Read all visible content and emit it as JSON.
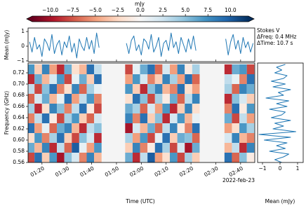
{
  "chart_data": [
    {
      "type": "heatmap",
      "clabel": "mJy",
      "colormap": "RdBu",
      "clim": [
        -12,
        12
      ],
      "cticks": [
        {
          "value": -10,
          "label": "−10.0"
        },
        {
          "value": -7.5,
          "label": "−7.5"
        },
        {
          "value": -5,
          "label": "−5.0"
        },
        {
          "value": -2.5,
          "label": "−2.5"
        },
        {
          "value": 0,
          "label": "0.0"
        },
        {
          "value": 2.5,
          "label": "2.5"
        },
        {
          "value": 5,
          "label": "5.0"
        },
        {
          "value": 7.5,
          "label": "7.5"
        },
        {
          "value": 10,
          "label": "10.0"
        }
      ],
      "xlabel": "Time (UTC)",
      "ylabel": "Frequency (GHz)",
      "date_label": "2022-feb-23",
      "annotations": [
        "Stokes V",
        "ΔFreq: 0.4 MHz",
        "ΔTime: 10.7 s"
      ],
      "xlim": [
        74.4,
        165.7
      ],
      "xticks": [
        {
          "value": 80,
          "label": "01:20"
        },
        {
          "value": 90,
          "label": "01:30"
        },
        {
          "value": 100,
          "label": "01:40"
        },
        {
          "value": 110,
          "label": "01:50"
        },
        {
          "value": 120,
          "label": "02:00"
        },
        {
          "value": 130,
          "label": "02:10"
        },
        {
          "value": 140,
          "label": "02:20"
        },
        {
          "value": 150,
          "label": "02:30"
        },
        {
          "value": 160,
          "label": "02:40"
        }
      ],
      "ylim": [
        0.56,
        0.7375
      ],
      "yticks": [
        0.56,
        0.58,
        {
          "value": 0.6,
          "label": "0.60"
        },
        0.62,
        0.64,
        0.66,
        0.68,
        {
          "value": 0.7,
          "label": "0.70"
        },
        0.72
      ],
      "x": [
        75.5,
        78.5,
        81.5,
        84.5,
        87.5,
        90.5,
        93.5,
        96.5,
        99.5,
        102.5,
        115,
        118,
        121,
        124,
        127,
        130,
        133,
        136,
        139,
        142,
        155,
        158,
        161,
        164
      ],
      "y": [
        0.56875,
        0.58625,
        0.60375,
        0.62125,
        0.63875,
        0.65625,
        0.67375,
        0.69125,
        0.70875,
        0.72625
      ],
      "z": [
        [
          -8,
          9,
          -3,
          7,
          -10,
          5,
          2,
          -6,
          8,
          -4,
          6,
          -9,
          3,
          10,
          -5,
          -2,
          7,
          -8,
          4,
          -3,
          9,
          -7,
          5,
          -1
        ],
        [
          6,
          -4,
          8,
          -9,
          3,
          -7,
          10,
          1,
          -5,
          7,
          -3,
          8,
          -6,
          -1,
          9,
          4,
          -8,
          2,
          -10,
          6,
          -4,
          3,
          -9,
          8
        ],
        [
          -2,
          7,
          -6,
          4,
          9,
          -3,
          -8,
          5,
          2,
          -9,
          4,
          -5,
          7,
          -8,
          1,
          9,
          -3,
          6,
          5,
          -7,
          2,
          8,
          -4,
          -6
        ],
        [
          9,
          -5,
          1,
          -7,
          6,
          8,
          -4,
          -9,
          3,
          5,
          -10,
          2,
          -4,
          6,
          -7,
          3,
          8,
          -1,
          -6,
          9,
          -5,
          -2,
          7,
          4
        ],
        [
          -6,
          3,
          9,
          -1,
          -8,
          4,
          7,
          -3,
          -7,
          2,
          8,
          -6,
          9,
          -3,
          5,
          -9,
          2,
          7,
          -4,
          1,
          6,
          -8,
          3,
          -5
        ],
        [
          4,
          -9,
          -2,
          8,
          5,
          -6,
          3,
          9,
          -1,
          -8,
          6,
          4,
          -7,
          2,
          -5,
          7,
          -9,
          -3,
          8,
          -2,
          -6,
          9,
          -1,
          7
        ],
        [
          -7,
          2,
          6,
          -4,
          1,
          9,
          -5,
          3,
          7,
          -6,
          -2,
          9,
          5,
          -8,
          4,
          -1,
          6,
          -7,
          3,
          8,
          -9,
          5,
          2,
          -3
        ],
        [
          3,
          -8,
          5,
          9,
          -6,
          -2,
          8,
          -7,
          4,
          1,
          7,
          -3,
          -9,
          5,
          8,
          -4,
          -6,
          9,
          -2,
          -5,
          4,
          -7,
          8,
          6
        ],
        [
          -9,
          6,
          -4,
          2,
          7,
          -8,
          1,
          6,
          -3,
          9,
          -5,
          7,
          2,
          -6,
          -3,
          8,
          4,
          -5,
          9,
          -7,
          3,
          1,
          -6,
          9
        ],
        [
          7,
          -3,
          8,
          -5,
          -9,
          6,
          -2,
          -4,
          9,
          3,
          -8,
          1,
          6,
          9,
          -7,
          2,
          -5,
          8,
          -1,
          4,
          -9,
          6,
          7,
          -8
        ]
      ]
    },
    {
      "type": "line",
      "ylabel": "Mean (mJy)",
      "xlim": [
        74.4,
        165.7
      ],
      "ylim": [
        -1.05,
        1.24
      ],
      "yticks": [
        {
          "value": -1,
          "label": "−1"
        },
        0,
        1
      ],
      "x": [
        75,
        76,
        77,
        78,
        79,
        80,
        81,
        82,
        83,
        84,
        85,
        86,
        87,
        88,
        89,
        90,
        91,
        92,
        93,
        94,
        95,
        96,
        97,
        98,
        99,
        100,
        101,
        102,
        103,
        108,
        114,
        115,
        116,
        117,
        118,
        119,
        120,
        121,
        122,
        123,
        124,
        125,
        126,
        127,
        128,
        129,
        130,
        131,
        132,
        133,
        134,
        135,
        136,
        137,
        138,
        139,
        140,
        141,
        142,
        148,
        154,
        155,
        156,
        157,
        158,
        159,
        160,
        161,
        162,
        163,
        164,
        165
      ],
      "series": [
        {
          "color": "#1f77b4",
          "values": [
            0.3,
            -0.4,
            0.6,
            -0.2,
            0.1,
            -0.7,
            0.5,
            0.2,
            -0.3,
            0.8,
            -0.5,
            0.1,
            0.4,
            -0.6,
            0.3,
            -0.1,
            0.7,
            -0.4,
            0.2,
            -0.8,
            0.5,
            0.0,
            -0.3,
            0.6,
            -0.2,
            0.4,
            -0.5,
            0.9,
            -0.1,
            null,
            0.2,
            -0.5,
            0.4,
            0.7,
            -0.3,
            0.1,
            -0.6,
            0.5,
            0.3,
            -0.2,
            0.8,
            -0.4,
            0.0,
            0.6,
            -0.7,
            0.2,
            0.4,
            -0.3,
            0.9,
            -0.1,
            0.3,
            -0.5,
            0.6,
            0.1,
            -0.4,
            0.5,
            -0.2,
            0.7,
            -0.3,
            null,
            0.5,
            -0.6,
            0.3,
            0.8,
            -0.2,
            0.4,
            -0.5,
            0.6,
            -0.1,
            0.3,
            -0.4,
            0.2
          ]
        }
      ]
    },
    {
      "type": "line",
      "orientation": "vertical",
      "xlabel": "Mean (mJy)",
      "xlim": [
        -1.28,
        1.32
      ],
      "xticks": [
        {
          "value": -1,
          "label": "−1"
        },
        0,
        1
      ],
      "ylim": [
        0.56,
        0.7375
      ],
      "y": [
        0.56,
        0.565,
        0.57,
        0.575,
        0.58,
        0.585,
        0.59,
        0.595,
        0.6,
        0.605,
        0.61,
        0.615,
        0.62,
        0.625,
        0.63,
        0.635,
        0.64,
        0.645,
        0.65,
        0.655,
        0.66,
        0.665,
        0.67,
        0.675,
        0.68,
        0.685,
        0.69,
        0.695,
        0.7,
        0.705,
        0.71,
        0.715,
        0.72,
        0.725,
        0.73,
        0.735
      ],
      "series": [
        {
          "color": "#1f77b4",
          "values": [
            0.1,
            -0.3,
            0.2,
            0.5,
            -0.6,
            0.3,
            -0.2,
            0.4,
            -0.9,
            0.6,
            -1.2,
            0.9,
            -0.4,
            0.2,
            -0.3,
            0.6,
            -0.5,
            0.1,
            0.3,
            -0.6,
            0.4,
            -0.2,
            0.5,
            -0.8,
            0.2,
            -0.1,
            0.6,
            -0.4,
            0.3,
            -0.5,
            0.2,
            0.4,
            -0.3,
            0.1,
            -0.2,
            0.3
          ]
        }
      ]
    }
  ]
}
